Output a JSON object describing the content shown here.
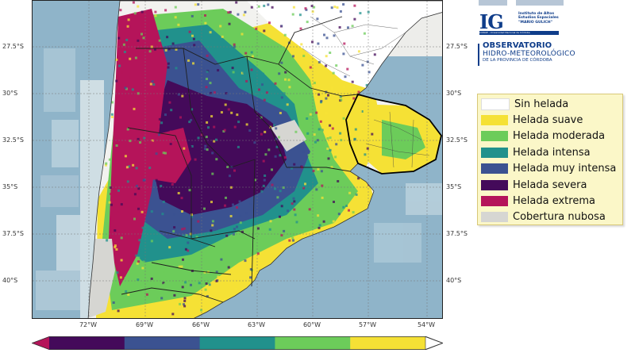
{
  "map": {
    "lat_ticks": [
      "27.5°S",
      "30°S",
      "32.5°S",
      "35°S",
      "37.5°S",
      "40°S"
    ],
    "lon_ticks": [
      "72°W",
      "69°W",
      "66°W",
      "63°W",
      "60°W",
      "57°W",
      "54°W"
    ],
    "colors": {
      "ocean": "#8fb4c9",
      "land": "#e9e9e6",
      "cloud": "#f4f4f2",
      "border": "#222222"
    }
  },
  "legend": {
    "items": [
      {
        "label": "Sin helada",
        "color": "#ffffff"
      },
      {
        "label": "Helada suave",
        "color": "#f5e135"
      },
      {
        "label": "Helada moderada",
        "color": "#6ccc5a"
      },
      {
        "label": "Helada intensa",
        "color": "#21918c"
      },
      {
        "label": "Helada muy intensa",
        "color": "#3b5291"
      },
      {
        "label": "Helada severa",
        "color": "#440a5a"
      },
      {
        "label": "Helada extrema",
        "color": "#b5145a"
      },
      {
        "label": "Cobertura nubosa",
        "color": "#d6d6d2"
      }
    ]
  },
  "colorbar": {
    "colors": [
      "#b5145a",
      "#440a5a",
      "#3b5291",
      "#21918c",
      "#6ccc5a",
      "#f5e135",
      "#ffffff"
    ]
  },
  "logos": {
    "ig_letters": "IG",
    "ig_line1": "Instituto de Altos",
    "ig_line2": "Estudios Espaciales",
    "ig_line3": "\"MARIO GULICH\"",
    "ig_bar": "CONAE - Universidad Nacional de Córdoba",
    "ohm_line1": "OBSERVATORIO",
    "ohm_line2": "HIDRO-METEOROLÓGICO",
    "ohm_line3": "DE LA PROVINCIA DE CÓRDOBA"
  }
}
